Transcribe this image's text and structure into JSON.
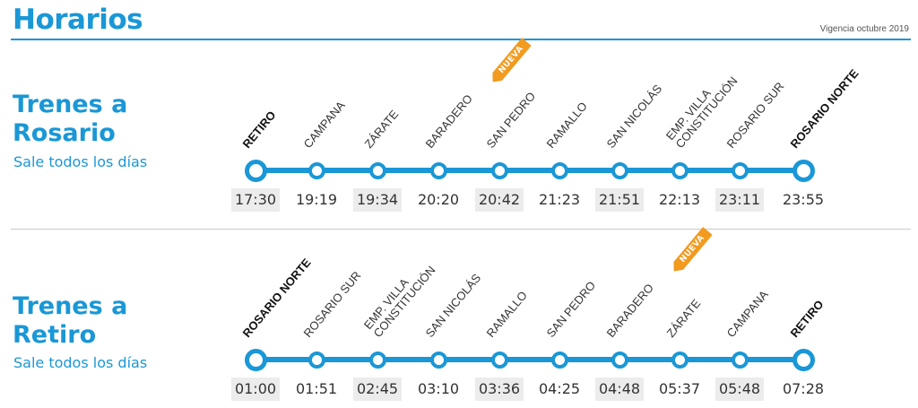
{
  "header": {
    "title": "Horarios",
    "validity": "Vigencia octubre 2019"
  },
  "badge_label": "NUEVA",
  "colors": {
    "accent": "#1a97d6",
    "badge": "#f29b1f",
    "time_shade": "#ececec"
  },
  "routes": [
    {
      "title_line1": "Trenes a",
      "title_line2": "Rosario",
      "subtitle": "Sale todos los días",
      "stops": [
        {
          "station": "RETIRO",
          "time": "17:30",
          "terminal": true,
          "shaded": true
        },
        {
          "station": "CAMPANA",
          "time": "19:19",
          "terminal": false,
          "shaded": false
        },
        {
          "station": "ZÁRATE",
          "time": "19:34",
          "terminal": false,
          "shaded": true
        },
        {
          "station": "BARADERO",
          "time": "20:20",
          "terminal": false,
          "shaded": false,
          "new": true
        },
        {
          "station": "SAN PEDRO",
          "time": "20:42",
          "terminal": false,
          "shaded": true
        },
        {
          "station": "RAMALLO",
          "time": "21:23",
          "terminal": false,
          "shaded": false
        },
        {
          "station": "SAN NICOLÁS",
          "time": "21:51",
          "terminal": false,
          "shaded": true
        },
        {
          "station": "EMP. VILLA\nCONSTITUCIÓN",
          "time": "22:13",
          "terminal": false,
          "shaded": false
        },
        {
          "station": "ROSARIO SUR",
          "time": "23:11",
          "terminal": false,
          "shaded": true
        },
        {
          "station": "ROSARIO NORTE",
          "time": "23:55",
          "terminal": true,
          "shaded": false
        }
      ]
    },
    {
      "title_line1": "Trenes a",
      "title_line2": "Retiro",
      "subtitle": "Sale todos los días",
      "stops": [
        {
          "station": "ROSARIO NORTE",
          "time": "01:00",
          "terminal": true,
          "shaded": true
        },
        {
          "station": "ROSARIO SUR",
          "time": "01:51",
          "terminal": false,
          "shaded": false
        },
        {
          "station": "EMP. VILLA\nCONSTITUCIÓN",
          "time": "02:45",
          "terminal": false,
          "shaded": true
        },
        {
          "station": "SAN NICOLÁS",
          "time": "03:10",
          "terminal": false,
          "shaded": false
        },
        {
          "station": "RAMALLO",
          "time": "03:36",
          "terminal": false,
          "shaded": true
        },
        {
          "station": "SAN PEDRO",
          "time": "04:25",
          "terminal": false,
          "shaded": false
        },
        {
          "station": "BARADERO",
          "time": "04:48",
          "terminal": false,
          "shaded": true,
          "new": true
        },
        {
          "station": "ZÁRATE",
          "time": "05:37",
          "terminal": false,
          "shaded": false
        },
        {
          "station": "CAMPANA",
          "time": "05:48",
          "terminal": false,
          "shaded": true
        },
        {
          "station": "RETIRO",
          "time": "07:28",
          "terminal": true,
          "shaded": false
        }
      ]
    }
  ]
}
